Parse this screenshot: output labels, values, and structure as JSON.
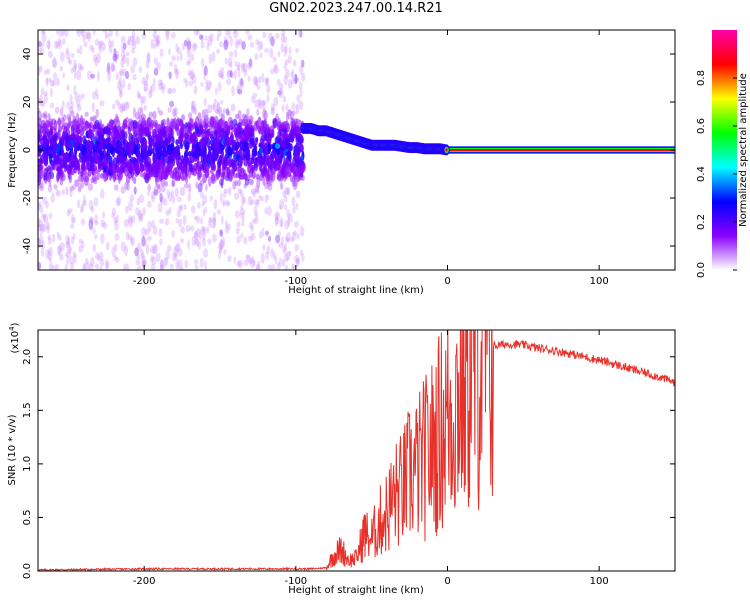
{
  "title": "GN02.2023.247.00.14.R21",
  "chart_data": [
    {
      "type": "heatmap",
      "xlabel": "Height of straight line (km)",
      "ylabel": "Frequency (Hz)",
      "xlim": [
        -270,
        150
      ],
      "ylim": [
        -50,
        50
      ],
      "xticks": [
        -200,
        -100,
        0,
        100
      ],
      "xtick_labels": [
        "-200",
        "-100",
        "0",
        "100"
      ],
      "yticks": [
        -40,
        -20,
        0,
        20,
        40
      ],
      "ytick_labels": [
        "-40",
        "-20",
        "0",
        "20",
        "40"
      ],
      "colorbar": {
        "label": "Normalized spectral amplitude",
        "range": [
          0,
          1
        ],
        "ticks": [
          0,
          0.2,
          0.4,
          0.6,
          0.8
        ],
        "tick_labels": [
          "0.0",
          "0.2",
          "0.4",
          "0.6",
          "0.8"
        ],
        "colormap": [
          "#ffffff",
          "#8a00ff",
          "#0000ff",
          "#00ffff",
          "#00ff00",
          "#ffff00",
          "#ff0000",
          "#ff00aa"
        ]
      },
      "ridge": {
        "x": [
          -95,
          -90,
          -85,
          -80,
          -75,
          -70,
          -65,
          -60,
          -55,
          -50,
          -45,
          -40,
          -35,
          -30,
          -25,
          -20,
          -15,
          -10,
          -5,
          0,
          10,
          50,
          100,
          150
        ],
        "freq": [
          9,
          9,
          8,
          8,
          7,
          6,
          5,
          4,
          3,
          2,
          2,
          2,
          2,
          1.5,
          1,
          1,
          0.5,
          0.5,
          0.5,
          0,
          0,
          0,
          0,
          0
        ]
      },
      "grid": false
    },
    {
      "type": "line",
      "xlabel": "Height of straight line (km)",
      "ylabel": "SNR (10 * v/v)",
      "y_multiplier": "(x10",
      "y_multiplier_exp": "4",
      "y_multiplier_close": ")",
      "xlim": [
        -270,
        150
      ],
      "ylim": [
        0,
        2.25
      ],
      "xticks": [
        -200,
        -100,
        0,
        100
      ],
      "xtick_labels": [
        "-200",
        "-100",
        "0",
        "100"
      ],
      "yticks": [
        0,
        0.5,
        1.0,
        1.5,
        2.0
      ],
      "ytick_labels": [
        "0.0",
        "0.5",
        "1.0",
        "1.5",
        "2.0"
      ],
      "series": [
        {
          "color": "#e8302a",
          "x": [
            -270,
            -200,
            -150,
            -100,
            -90,
            -80,
            -75,
            -70,
            -65,
            -60,
            -55,
            -50,
            -45,
            -40,
            -35,
            -30,
            -25,
            -20,
            -15,
            -10,
            -5,
            0,
            5,
            10,
            15,
            20,
            25,
            30,
            40,
            50,
            60,
            70,
            80,
            90,
            100,
            110,
            120,
            130,
            140,
            150
          ],
          "y": [
            0.01,
            0.02,
            0.02,
            0.02,
            0.02,
            0.03,
            0.15,
            0.2,
            0.1,
            0.12,
            0.35,
            0.3,
            0.45,
            0.55,
            0.7,
            0.75,
            0.9,
            0.95,
            1.05,
            1.15,
            1.3,
            1.45,
            1.55,
            1.75,
            1.85,
            1.95,
            2.05,
            2.1,
            2.12,
            2.11,
            2.08,
            2.06,
            2.03,
            2.0,
            1.97,
            1.93,
            1.89,
            1.85,
            1.81,
            1.76
          ]
        }
      ],
      "grid": false
    }
  ]
}
